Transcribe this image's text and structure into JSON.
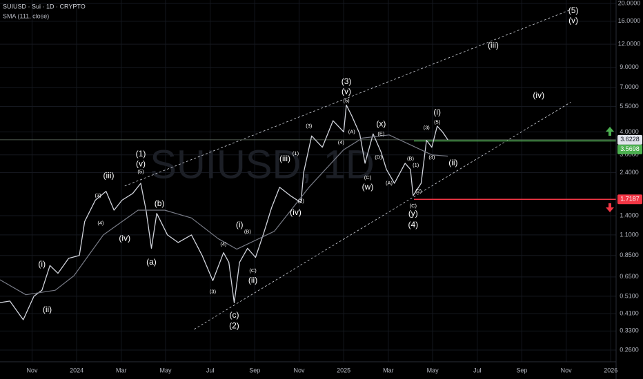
{
  "chart_data": {
    "type": "line",
    "title": "SUIUSD · Sui · 1D · CRYPTO",
    "watermark": "SUIUSD, 1D",
    "log_scale": true,
    "grid": true,
    "xlim": [
      2023.713,
      2026.02
    ],
    "ylim": [
      0.2244,
      20.88
    ],
    "xticks": [
      {
        "value": 2023.833,
        "label": "Nov"
      },
      {
        "value": 2024.0,
        "label": "2024"
      },
      {
        "value": 2024.167,
        "label": "Mar"
      },
      {
        "value": 2024.333,
        "label": "May"
      },
      {
        "value": 2024.5,
        "label": "Jul"
      },
      {
        "value": 2024.667,
        "label": "Sep"
      },
      {
        "value": 2024.833,
        "label": "Nov"
      },
      {
        "value": 2025.0,
        "label": "2025"
      },
      {
        "value": 2025.167,
        "label": "Mar"
      },
      {
        "value": 2025.333,
        "label": "May"
      },
      {
        "value": 2025.5,
        "label": "Jul"
      },
      {
        "value": 2025.667,
        "label": "Sep"
      },
      {
        "value": 2025.833,
        "label": "Nov"
      },
      {
        "value": 2026.0,
        "label": "2026"
      }
    ],
    "yticks": [
      {
        "value": 20,
        "label": "20.0000"
      },
      {
        "value": 16,
        "label": "16.0000"
      },
      {
        "value": 12,
        "label": "12.0000"
      },
      {
        "value": 9,
        "label": "9.0000"
      },
      {
        "value": 7,
        "label": "7.0000"
      },
      {
        "value": 5.5,
        "label": "5.5000"
      },
      {
        "value": 4,
        "label": "4.0000"
      },
      {
        "value": 3,
        "label": "3.0000"
      },
      {
        "value": 2.4,
        "label": "2.4000"
      },
      {
        "value": 1.4,
        "label": "1.4000"
      },
      {
        "value": 1.1,
        "label": "1.1000"
      },
      {
        "value": 0.85,
        "label": "0.8500"
      },
      {
        "value": 0.65,
        "label": "0.6500"
      },
      {
        "value": 0.51,
        "label": "0.5100"
      },
      {
        "value": 0.41,
        "label": "0.4100"
      },
      {
        "value": 0.33,
        "label": "0.3300"
      },
      {
        "value": 0.26,
        "label": "0.2600"
      }
    ],
    "series": [
      {
        "color": "#d1d4dc",
        "x": [
          2023.71,
          2023.75,
          2023.8,
          2023.84,
          2023.87,
          2023.9,
          2023.93,
          2023.97,
          2024.01,
          2024.03,
          2024.07,
          2024.11,
          2024.14,
          2024.17,
          2024.21,
          2024.24,
          2024.26,
          2024.28,
          2024.3,
          2024.34,
          2024.38,
          2024.43,
          2024.47,
          2024.51,
          2024.55,
          2024.57,
          2024.59,
          2024.61,
          2024.64,
          2024.67,
          2024.7,
          2024.73,
          2024.76,
          2024.8,
          2024.84,
          2024.85,
          2024.88,
          2024.92,
          2024.96,
          2025.0,
          2025.01,
          2025.03,
          2025.06,
          2025.08,
          2025.11,
          2025.14,
          2025.16,
          2025.19,
          2025.23,
          2025.25,
          2025.26,
          2025.29,
          2025.31,
          2025.33,
          2025.35,
          2025.37,
          2025.39
        ],
        "values": [
          0.47,
          0.48,
          0.38,
          0.51,
          0.55,
          0.75,
          0.68,
          0.82,
          0.85,
          1.3,
          1.7,
          1.9,
          1.5,
          1.7,
          1.85,
          2.1,
          1.5,
          0.93,
          1.44,
          1.1,
          1.0,
          1.1,
          0.85,
          0.62,
          0.88,
          0.78,
          0.47,
          0.78,
          0.93,
          0.83,
          1.12,
          1.55,
          2.0,
          1.8,
          1.65,
          2.4,
          3.8,
          3.3,
          4.6,
          4.0,
          5.6,
          4.9,
          3.9,
          2.7,
          3.9,
          3.1,
          2.5,
          2.1,
          2.7,
          2.5,
          1.8,
          2.1,
          3.6,
          3.3,
          4.3,
          4.0,
          3.6228
        ]
      },
      {
        "name": "SMA (111, close)",
        "color": "#787b86",
        "x": [
          2023.71,
          2023.81,
          2023.92,
          2023.99,
          2024.1,
          2024.23,
          2024.33,
          2024.43,
          2024.53,
          2024.6,
          2024.74,
          2024.87,
          2025.0,
          2025.07,
          2025.17,
          2025.25,
          2025.33,
          2025.39
        ],
        "values": [
          0.63,
          0.52,
          0.55,
          0.66,
          1.1,
          1.5,
          1.5,
          1.36,
          1.05,
          0.92,
          1.15,
          2.0,
          3.2,
          3.7,
          3.85,
          3.4,
          3.0,
          2.95
        ]
      }
    ],
    "last_price": 3.6228,
    "levels": [
      {
        "value": 3.5698,
        "color": "#4caf50"
      },
      {
        "value": 1.7187,
        "color": "#f23645"
      }
    ],
    "trendlines": [
      {
        "x": [
          2024.18,
          2025.85
        ],
        "y": [
          2.03,
          18.5
        ]
      },
      {
        "x": [
          2024.44,
          2025.85
        ],
        "y": [
          0.337,
          5.8
        ]
      }
    ],
    "wave_labels": [
      {
        "text": "(1)",
        "x": 2024.24,
        "y": 3.02
      },
      {
        "text": "(v)",
        "x": 2024.24,
        "y": 2.67
      },
      {
        "text": "(iii)",
        "x": 2024.12,
        "y": 2.3
      },
      {
        "text": "(i)",
        "x": 2023.87,
        "y": 0.76
      },
      {
        "text": "(ii)",
        "x": 2023.89,
        "y": 0.43
      },
      {
        "text": "(iv)",
        "x": 2024.18,
        "y": 1.05
      },
      {
        "text": "(a)",
        "x": 2024.28,
        "y": 0.78
      },
      {
        "text": "(b)",
        "x": 2024.31,
        "y": 1.62
      },
      {
        "text": "(2)",
        "x": 2024.59,
        "y": 0.35
      },
      {
        "text": "(c)",
        "x": 2024.59,
        "y": 0.4
      },
      {
        "text": "(i)",
        "x": 2024.61,
        "y": 1.24
      },
      {
        "text": "(ii)",
        "x": 2024.66,
        "y": 0.62
      },
      {
        "text": "(iii)",
        "x": 2024.78,
        "y": 2.85
      },
      {
        "text": "(iv)",
        "x": 2024.82,
        "y": 1.45
      },
      {
        "text": "(3)",
        "x": 2025.01,
        "y": 7.5
      },
      {
        "text": "(v)",
        "x": 2025.01,
        "y": 6.6
      },
      {
        "text": "(w)",
        "x": 2025.09,
        "y": 2.0
      },
      {
        "text": "(x)",
        "x": 2025.14,
        "y": 4.4
      },
      {
        "text": "(y)",
        "x": 2025.26,
        "y": 1.43
      },
      {
        "text": "(4)",
        "x": 2025.26,
        "y": 1.24
      },
      {
        "text": "(i)",
        "x": 2025.35,
        "y": 5.1
      },
      {
        "text": "(ii)",
        "x": 2025.41,
        "y": 2.7
      },
      {
        "text": "(iii)",
        "x": 2025.56,
        "y": 11.8
      },
      {
        "text": "(iv)",
        "x": 2025.73,
        "y": 6.3
      },
      {
        "text": "(5)",
        "x": 2025.86,
        "y": 18.2
      },
      {
        "text": "(v)",
        "x": 2025.86,
        "y": 16.1
      }
    ],
    "sub_wave_labels": [
      {
        "text": "(3)",
        "x": 2024.08,
        "y": 1.8
      },
      {
        "text": "(4)",
        "x": 2024.09,
        "y": 1.27
      },
      {
        "text": "(5)",
        "x": 2024.24,
        "y": 2.42
      },
      {
        "text": "(3)",
        "x": 2024.51,
        "y": 0.54
      },
      {
        "text": "(4)",
        "x": 2024.55,
        "y": 0.98
      },
      {
        "text": "(B)",
        "x": 2024.64,
        "y": 1.14
      },
      {
        "text": "(C)",
        "x": 2024.66,
        "y": 0.7
      },
      {
        "text": "(1)",
        "x": 2024.82,
        "y": 3.05
      },
      {
        "text": "(2)",
        "x": 2024.84,
        "y": 1.68
      },
      {
        "text": "(3)",
        "x": 2024.87,
        "y": 4.3
      },
      {
        "text": "(4)",
        "x": 2024.99,
        "y": 3.5
      },
      {
        "text": "(5)",
        "x": 2025.01,
        "y": 5.9
      },
      {
        "text": "(A)",
        "x": 2025.03,
        "y": 4.0
      },
      {
        "text": "(C)",
        "x": 2025.09,
        "y": 2.25
      },
      {
        "text": "(E)",
        "x": 2025.14,
        "y": 3.9
      },
      {
        "text": "(D)",
        "x": 2025.13,
        "y": 2.9
      },
      {
        "text": "(A)",
        "x": 2025.17,
        "y": 2.1
      },
      {
        "text": "(B)",
        "x": 2025.25,
        "y": 2.85
      },
      {
        "text": "(C)",
        "x": 2025.26,
        "y": 1.58
      },
      {
        "text": "(1)",
        "x": 2025.27,
        "y": 2.63
      },
      {
        "text": "(2)",
        "x": 2025.28,
        "y": 1.9
      },
      {
        "text": "(3)",
        "x": 2025.31,
        "y": 4.2
      },
      {
        "text": "(4)",
        "x": 2025.33,
        "y": 2.9
      },
      {
        "text": "(5)",
        "x": 2025.35,
        "y": 4.5
      }
    ]
  }
}
